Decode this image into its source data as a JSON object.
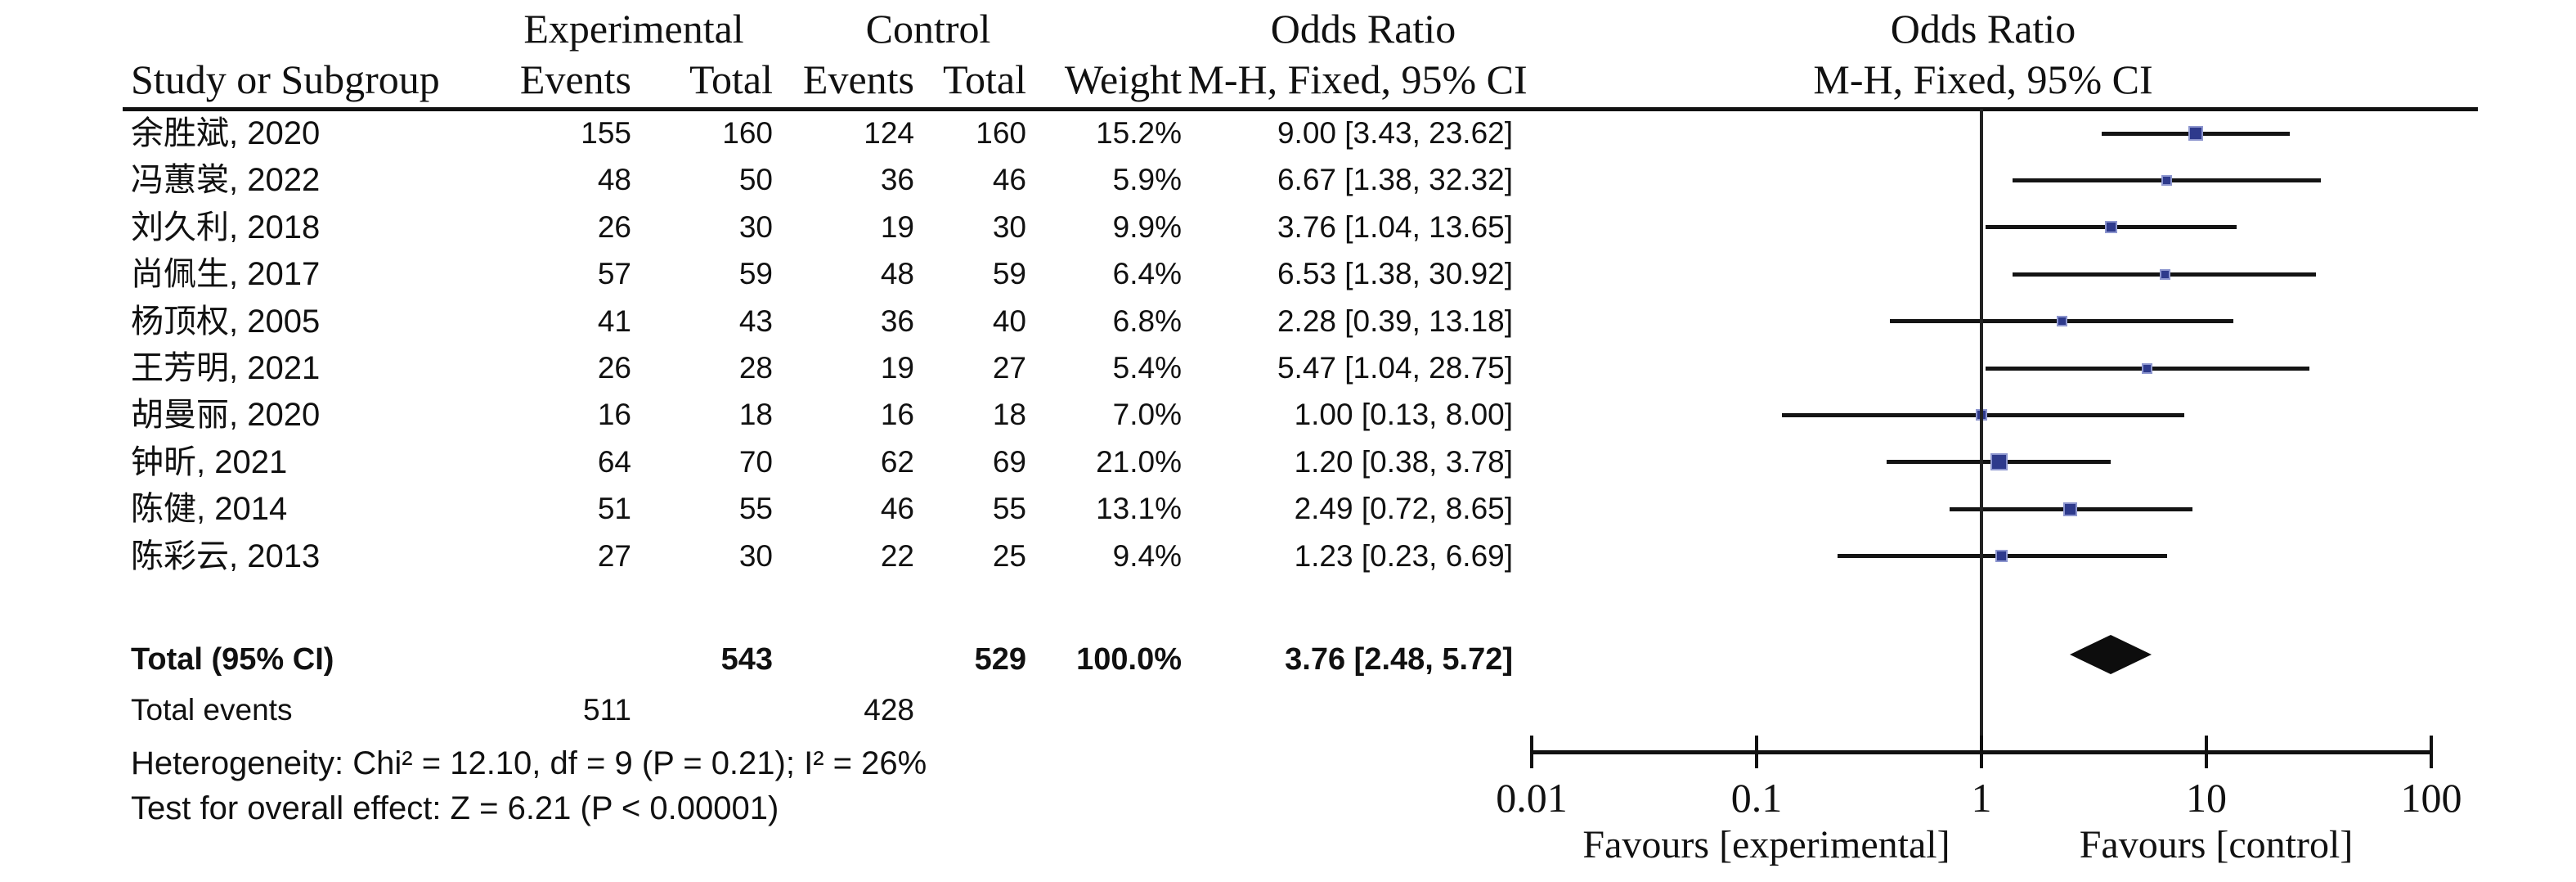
{
  "figure": {
    "group_experimental": "Experimental",
    "group_control": "Control",
    "or_header_table": "Odds Ratio",
    "or_header_plot": "Odds Ratio",
    "col_study": "Study or Subgroup",
    "col_events_experimental": "Events",
    "col_total_experimental": "Total",
    "col_events_control": "Events",
    "col_total_control": "Total",
    "col_weight": "Weight",
    "method_header_table": "M-H, Fixed, 95% CI",
    "method_header_plot": "M-H, Fixed, 95% CI"
  },
  "colors": {
    "marker_fill": "#2E3A8C",
    "marker_edge": "#8d96cf",
    "line": "#141414",
    "diamond": "#0d0d0d",
    "text": "#111111"
  },
  "chart_data": {
    "type": "scatter",
    "subtype": "forest-plot-meta-analysis",
    "effect_measure": "Odds Ratio",
    "method": "M-H, Fixed, 95% CI",
    "x_scale": "log",
    "x_ticks": [
      0.01,
      0.1,
      1,
      10,
      100
    ],
    "x_tick_labels": [
      "0.01",
      "0.1",
      "1",
      "10",
      "100"
    ],
    "null_line": 1,
    "favours_left": "Favours [experimental]",
    "favours_right": "Favours [control]",
    "studies": [
      {
        "study": "余胜斌, 2020",
        "e_events": 155,
        "e_total": 160,
        "c_events": 124,
        "c_total": 160,
        "weight": "15.2%",
        "weight_pct": 15.2,
        "or": 9.0,
        "ci_low": 3.43,
        "ci_high": 23.62,
        "or_text": "9.00 [3.43, 23.62]"
      },
      {
        "study": "冯蕙裳, 2022",
        "e_events": 48,
        "e_total": 50,
        "c_events": 36,
        "c_total": 46,
        "weight": "5.9%",
        "weight_pct": 5.9,
        "or": 6.67,
        "ci_low": 1.38,
        "ci_high": 32.32,
        "or_text": "6.67 [1.38, 32.32]"
      },
      {
        "study": "刘久利, 2018",
        "e_events": 26,
        "e_total": 30,
        "c_events": 19,
        "c_total": 30,
        "weight": "9.9%",
        "weight_pct": 9.9,
        "or": 3.76,
        "ci_low": 1.04,
        "ci_high": 13.65,
        "or_text": "3.76 [1.04, 13.65]"
      },
      {
        "study": "尚佩生, 2017",
        "e_events": 57,
        "e_total": 59,
        "c_events": 48,
        "c_total": 59,
        "weight": "6.4%",
        "weight_pct": 6.4,
        "or": 6.53,
        "ci_low": 1.38,
        "ci_high": 30.92,
        "or_text": "6.53 [1.38, 30.92]"
      },
      {
        "study": "杨顶权, 2005",
        "e_events": 41,
        "e_total": 43,
        "c_events": 36,
        "c_total": 40,
        "weight": "6.8%",
        "weight_pct": 6.8,
        "or": 2.28,
        "ci_low": 0.39,
        "ci_high": 13.18,
        "or_text": "2.28 [0.39, 13.18]"
      },
      {
        "study": "王芳明, 2021",
        "e_events": 26,
        "e_total": 28,
        "c_events": 19,
        "c_total": 27,
        "weight": "5.4%",
        "weight_pct": 5.4,
        "or": 5.47,
        "ci_low": 1.04,
        "ci_high": 28.75,
        "or_text": "5.47 [1.04, 28.75]"
      },
      {
        "study": "胡曼丽, 2020",
        "e_events": 16,
        "e_total": 18,
        "c_events": 16,
        "c_total": 18,
        "weight": "7.0%",
        "weight_pct": 7.0,
        "or": 1.0,
        "ci_low": 0.13,
        "ci_high": 8.0,
        "or_text": "1.00 [0.13, 8.00]"
      },
      {
        "study": "钟昕, 2021",
        "e_events": 64,
        "e_total": 70,
        "c_events": 62,
        "c_total": 69,
        "weight": "21.0%",
        "weight_pct": 21.0,
        "or": 1.2,
        "ci_low": 0.38,
        "ci_high": 3.78,
        "or_text": "1.20 [0.38, 3.78]"
      },
      {
        "study": "陈健, 2014",
        "e_events": 51,
        "e_total": 55,
        "c_events": 46,
        "c_total": 55,
        "weight": "13.1%",
        "weight_pct": 13.1,
        "or": 2.49,
        "ci_low": 0.72,
        "ci_high": 8.65,
        "or_text": "2.49 [0.72, 8.65]"
      },
      {
        "study": "陈彩云, 2013",
        "e_events": 27,
        "e_total": 30,
        "c_events": 22,
        "c_total": 25,
        "weight": "9.4%",
        "weight_pct": 9.4,
        "or": 1.23,
        "ci_low": 0.23,
        "ci_high": 6.69,
        "or_text": "1.23 [0.23, 6.69]"
      }
    ],
    "overall": {
      "label": "Total (95% CI)",
      "e_total": 543,
      "c_total": 529,
      "weight": "100.0%",
      "or": 3.76,
      "ci_low": 2.48,
      "ci_high": 5.72,
      "or_text": "3.76 [2.48, 5.72]"
    },
    "total_events": {
      "label": "Total events",
      "experimental": 511,
      "control": 428
    },
    "heterogeneity": "Heterogeneity: Chi² = 12.10, df = 9 (P = 0.21); I² = 26%",
    "overall_effect": "Test for overall effect: Z = 6.21 (P < 0.00001)"
  }
}
